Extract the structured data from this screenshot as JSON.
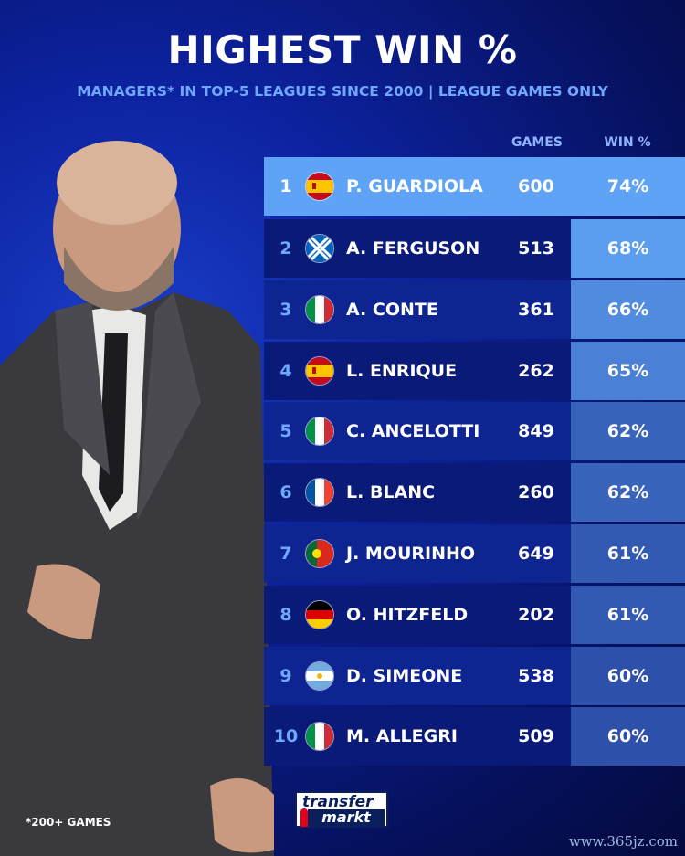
{
  "header": {
    "title": "HIGHEST WIN %",
    "subtitle": "MANAGERS* IN TOP-5 LEAGUES SINCE 2000 | LEAGUE GAMES ONLY"
  },
  "chart_data": {
    "type": "table",
    "columns": [
      "GAMES",
      "WIN %"
    ],
    "rows": [
      {
        "rank": "1",
        "flag": "spain",
        "name": "P. GUARDIOLA",
        "games": "600",
        "win": "74%",
        "win_value": 74
      },
      {
        "rank": "2",
        "flag": "scotland",
        "name": "A. FERGUSON",
        "games": "513",
        "win": "68%",
        "win_value": 68
      },
      {
        "rank": "3",
        "flag": "italy",
        "name": "A. CONTE",
        "games": "361",
        "win": "66%",
        "win_value": 66
      },
      {
        "rank": "4",
        "flag": "spain",
        "name": "L. ENRIQUE",
        "games": "262",
        "win": "65%",
        "win_value": 65
      },
      {
        "rank": "5",
        "flag": "italy",
        "name": "C. ANCELOTTI",
        "games": "849",
        "win": "62%",
        "win_value": 62
      },
      {
        "rank": "6",
        "flag": "france",
        "name": "L. BLANC",
        "games": "260",
        "win": "62%",
        "win_value": 62
      },
      {
        "rank": "7",
        "flag": "portugal",
        "name": "J. MOURINHO",
        "games": "649",
        "win": "61%",
        "win_value": 61
      },
      {
        "rank": "8",
        "flag": "germany",
        "name": "O. HITZFELD",
        "games": "202",
        "win": "61%",
        "win_value": 61
      },
      {
        "rank": "9",
        "flag": "argentina",
        "name": "D. SIMEONE",
        "games": "538",
        "win": "60%",
        "win_value": 60
      },
      {
        "rank": "10",
        "flag": "italy",
        "name": "M. ALLEGRI",
        "games": "509",
        "win": "60%",
        "win_value": 60
      }
    ]
  },
  "footnote": "*200+ GAMES",
  "logo": {
    "line1": "transfer",
    "line2": "markt"
  },
  "watermark": "www.365jz.com",
  "colors": {
    "highlight": "#5ea3f5",
    "row_dark": "#0a1a78",
    "row_light": "#0e2490",
    "accent_text": "#6fa8ff"
  }
}
